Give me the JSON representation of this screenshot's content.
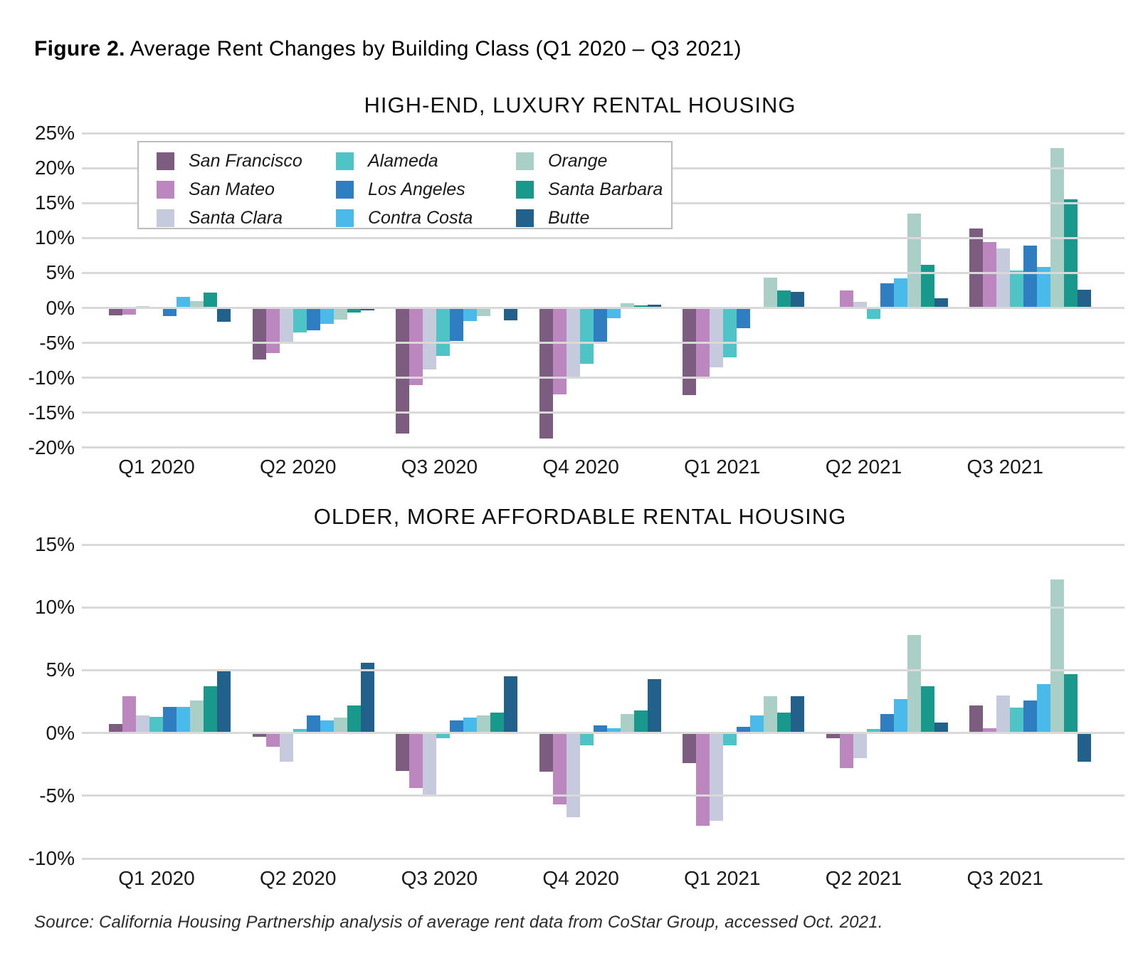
{
  "figure": {
    "label": "Figure 2.",
    "caption": " Average Rent Changes by Building Class (Q1 2020 – Q3 2021)"
  },
  "counties": [
    {
      "name": "San Francisco",
      "color": "#7c5d80"
    },
    {
      "name": "San Mateo",
      "color": "#bc86bf"
    },
    {
      "name": "Santa Clara",
      "color": "#c5cbdd"
    },
    {
      "name": "Alameda",
      "color": "#4ec4c7"
    },
    {
      "name": "Los Angeles",
      "color": "#2e7ec1"
    },
    {
      "name": "Contra Costa",
      "color": "#49baea"
    },
    {
      "name": "Orange",
      "color": "#aacfc6"
    },
    {
      "name": "Santa Barbara",
      "color": "#18998b"
    },
    {
      "name": "Butte",
      "color": "#21618c"
    }
  ],
  "chart_data": [
    {
      "type": "bar",
      "title": "HIGH-END, LUXURY RENTAL HOUSING",
      "categories": [
        "Q1 2020",
        "Q2 2020",
        "Q3 2020",
        "Q4 2020",
        "Q1 2021",
        "Q2 2021",
        "Q3 2021"
      ],
      "ylim": [
        -20,
        25
      ],
      "yticks": [
        25,
        20,
        15,
        10,
        5,
        0,
        -5,
        -10,
        -15,
        -20
      ],
      "ytick_format": "percent",
      "grid": true,
      "legend_position": "top-left-inside",
      "series": [
        {
          "name": "San Francisco",
          "values": [
            -1.1,
            -7.4,
            -18.0,
            -18.7,
            -12.5,
            0.0,
            11.4
          ]
        },
        {
          "name": "San Mateo",
          "values": [
            -1.0,
            -6.5,
            -11.0,
            -12.4,
            -9.9,
            2.5,
            9.4
          ]
        },
        {
          "name": "Santa Clara",
          "values": [
            0.3,
            -5.1,
            -8.8,
            -10.0,
            -8.5,
            0.9,
            8.5
          ]
        },
        {
          "name": "Alameda",
          "values": [
            0.0,
            -3.5,
            -6.9,
            -8.0,
            -7.1,
            -1.6,
            5.3
          ]
        },
        {
          "name": "Los Angeles",
          "values": [
            -1.2,
            -3.2,
            -4.7,
            -4.9,
            -2.9,
            3.5,
            8.9
          ]
        },
        {
          "name": "Contra Costa",
          "values": [
            1.6,
            -2.3,
            -1.9,
            -1.5,
            0.2,
            4.2,
            5.9
          ]
        },
        {
          "name": "Orange",
          "values": [
            1.0,
            -1.7,
            -1.2,
            0.7,
            4.3,
            13.5,
            22.9
          ]
        },
        {
          "name": "Santa Barbara",
          "values": [
            2.2,
            -0.7,
            0.0,
            0.4,
            2.5,
            6.2,
            15.5
          ]
        },
        {
          "name": "Butte",
          "values": [
            -2.0,
            -0.4,
            -1.8,
            0.5,
            2.3,
            1.4,
            2.6
          ]
        }
      ]
    },
    {
      "type": "bar",
      "title": "OLDER, MORE AFFORDABLE RENTAL HOUSING",
      "categories": [
        "Q1 2020",
        "Q2 2020",
        "Q3 2020",
        "Q4 2020",
        "Q1 2021",
        "Q2 2021",
        "Q3 2021"
      ],
      "ylim": [
        -10,
        15
      ],
      "yticks": [
        15,
        10,
        5,
        0,
        -5,
        -10
      ],
      "ytick_format": "percent",
      "grid": true,
      "legend_position": "none",
      "series": [
        {
          "name": "San Francisco",
          "values": [
            0.7,
            -0.3,
            -3.0,
            -3.1,
            -2.4,
            -0.4,
            2.2
          ]
        },
        {
          "name": "San Mateo",
          "values": [
            2.9,
            -1.1,
            -4.4,
            -5.7,
            -7.4,
            -2.8,
            0.4
          ]
        },
        {
          "name": "Santa Clara",
          "values": [
            1.4,
            -2.3,
            -4.9,
            -6.7,
            -7.0,
            -2.0,
            3.0
          ]
        },
        {
          "name": "Alameda",
          "values": [
            1.3,
            0.3,
            -0.4,
            -1.0,
            -1.0,
            0.3,
            2.0
          ]
        },
        {
          "name": "Los Angeles",
          "values": [
            2.1,
            1.4,
            1.0,
            0.6,
            0.5,
            1.5,
            2.6
          ]
        },
        {
          "name": "Contra Costa",
          "values": [
            2.1,
            1.0,
            1.2,
            0.4,
            1.4,
            2.7,
            3.9
          ]
        },
        {
          "name": "Orange",
          "values": [
            2.6,
            1.2,
            1.4,
            1.5,
            2.9,
            7.8,
            12.2
          ]
        },
        {
          "name": "Santa Barbara",
          "values": [
            3.7,
            2.2,
            1.6,
            1.8,
            1.6,
            3.7,
            4.7
          ]
        },
        {
          "name": "Butte",
          "values": [
            5.0,
            5.6,
            4.5,
            4.3,
            2.9,
            0.8,
            -2.3
          ]
        }
      ]
    }
  ],
  "source": "Source: California Housing Partnership analysis of average rent data from CoStar Group, accessed Oct. 2021."
}
